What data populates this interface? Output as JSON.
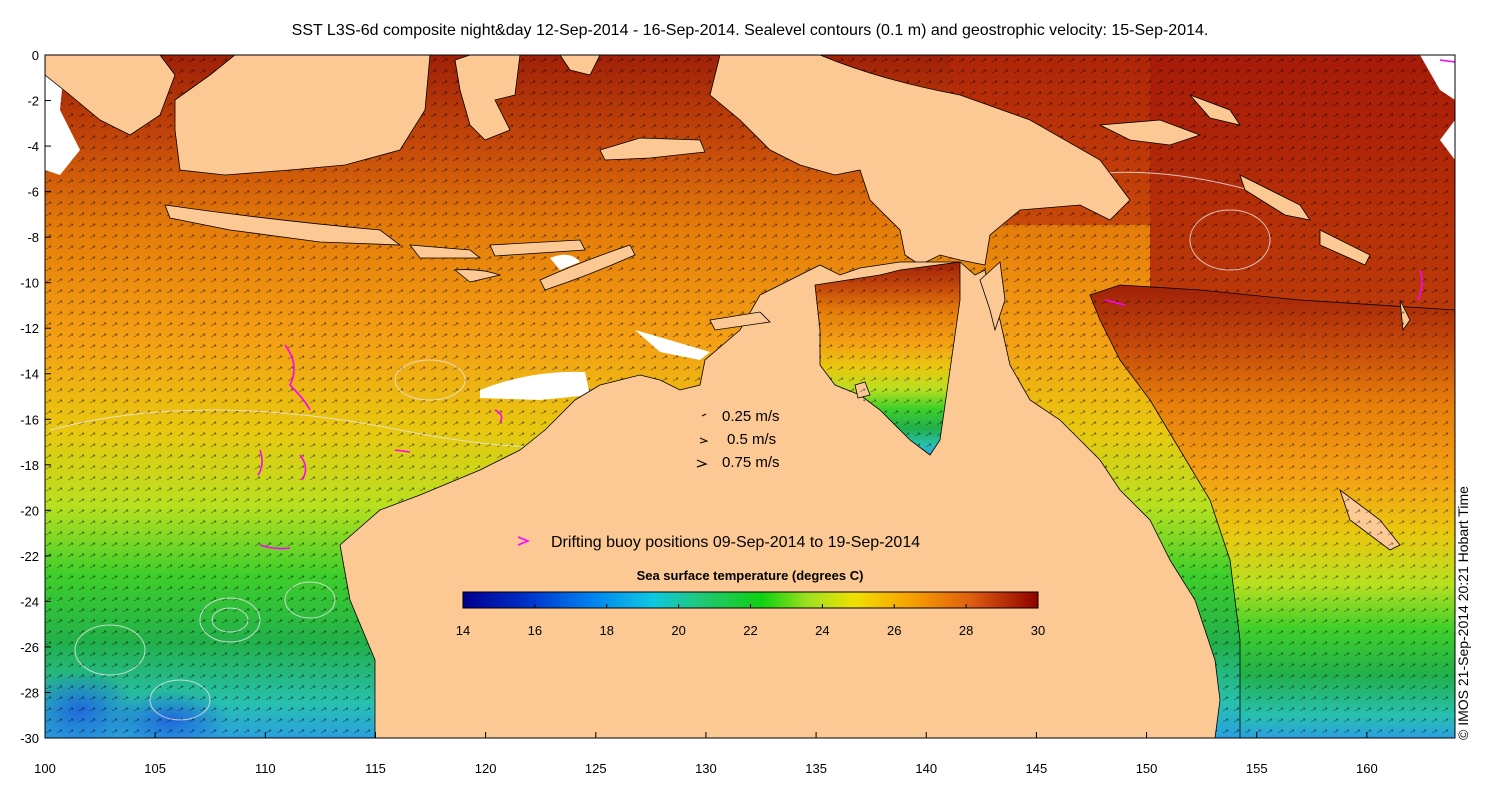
{
  "title": "SST L3S-6d composite night&day 12-Sep-2014 - 16-Sep-2014. Sealevel contours (0.1 m) and geostrophic velocity: 15-Sep-2014.",
  "credit": "© IMOS 21-Sep-2014 20:21 Hobart Time",
  "axes": {
    "lon_ticks": [
      "100",
      "105",
      "110",
      "115",
      "120",
      "125",
      "130",
      "135",
      "140",
      "145",
      "150",
      "155",
      "160"
    ],
    "lat_ticks": [
      "0",
      "-2",
      "-4",
      "-6",
      "-8",
      "-10",
      "-12",
      "-14",
      "-16",
      "-18",
      "-20",
      "-22",
      "-24",
      "-26",
      "-28",
      "-30"
    ]
  },
  "velocity_legend": {
    "entries": [
      "0.25 m/s",
      "0.5 m/s",
      "0.75 m/s"
    ],
    "marker": "arrow-icon"
  },
  "buoy_legend": {
    "text": "Drifting buoy positions 09-Sep-2014 to 19-Sep-2014",
    "marker_color": "#ff00ff"
  },
  "colorbar": {
    "title": "Sea surface temperature (degrees C)",
    "ticks": [
      "14",
      "16",
      "18",
      "20",
      "22",
      "24",
      "26",
      "28",
      "30"
    ],
    "min": 14,
    "max": 30
  },
  "colors": {
    "land": "#fcc995",
    "no_data": "#ffffff",
    "contour": "#e8e8e8",
    "arrows": "#000000"
  }
}
